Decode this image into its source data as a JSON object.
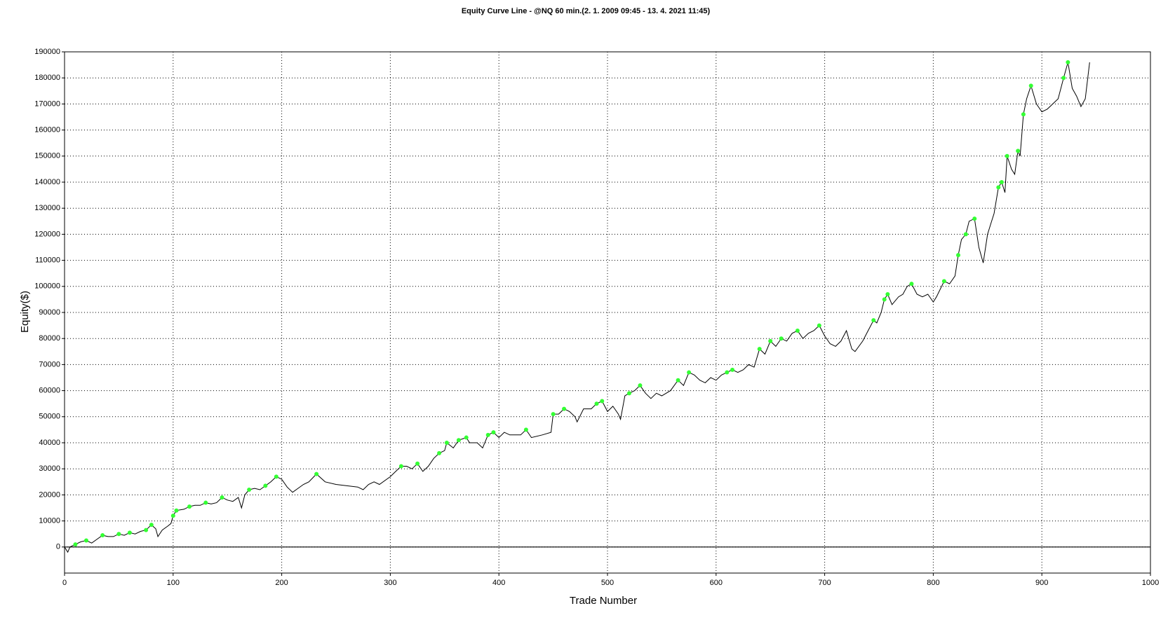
{
  "chart_data": {
    "type": "line",
    "title": "Equity Curve Line - @NQ 60 min.(2. 1. 2009 09:45 - 13. 4. 2021 11:45)",
    "xlabel": "Trade Number",
    "ylabel": "Equity($)",
    "xlim": [
      0,
      1000
    ],
    "xticks": [
      0,
      100,
      200,
      300,
      400,
      500,
      600,
      700,
      800,
      900,
      1000
    ],
    "ylim": [
      -10000,
      190000
    ],
    "yticks": [
      0,
      10000,
      20000,
      30000,
      40000,
      50000,
      60000,
      70000,
      80000,
      90000,
      100000,
      110000,
      120000,
      130000,
      140000,
      150000,
      160000,
      170000,
      180000,
      190000
    ],
    "grid": true,
    "color": "#000000",
    "x": [
      0,
      3,
      5,
      10,
      15,
      20,
      25,
      30,
      35,
      40,
      45,
      50,
      55,
      60,
      65,
      70,
      75,
      80,
      84,
      86,
      90,
      95,
      98,
      100,
      103,
      110,
      115,
      120,
      125,
      130,
      135,
      140,
      145,
      150,
      155,
      160,
      163,
      166,
      170,
      175,
      180,
      185,
      190,
      195,
      200,
      205,
      210,
      215,
      220,
      225,
      232,
      240,
      250,
      260,
      270,
      275,
      280,
      285,
      290,
      300,
      305,
      310,
      315,
      320,
      325,
      330,
      335,
      340,
      345,
      350,
      352,
      358,
      363,
      370,
      373,
      380,
      385,
      390,
      395,
      400,
      405,
      410,
      420,
      425,
      430,
      440,
      448,
      450,
      455,
      460,
      465,
      470,
      472,
      478,
      485,
      490,
      495,
      500,
      505,
      510,
      512,
      516,
      520,
      525,
      530,
      535,
      540,
      545,
      550,
      558,
      565,
      570,
      575,
      580,
      585,
      590,
      595,
      600,
      605,
      610,
      615,
      620,
      625,
      630,
      635,
      640,
      645,
      650,
      655,
      660,
      665,
      670,
      675,
      680,
      685,
      690,
      695,
      700,
      705,
      710,
      715,
      720,
      725,
      728,
      735,
      740,
      745,
      748,
      752,
      755,
      758,
      762,
      768,
      772,
      776,
      780,
      785,
      790,
      795,
      800,
      803,
      810,
      815,
      820,
      823,
      826,
      830,
      833,
      838,
      842,
      846,
      850,
      853,
      856,
      860,
      863,
      866,
      868,
      872,
      875,
      878,
      880,
      883,
      886,
      890,
      895,
      900,
      905,
      910,
      915,
      920,
      924,
      928,
      932,
      936,
      940,
      944
    ],
    "values": [
      0,
      -2000,
      0,
      1000,
      2000,
      2500,
      1500,
      3000,
      4500,
      4000,
      4000,
      5000,
      4500,
      5500,
      5000,
      6000,
      6500,
      8500,
      7000,
      4000,
      6500,
      8000,
      9000,
      12000,
      14000,
      14500,
      15500,
      16000,
      16000,
      17000,
      16500,
      17000,
      19000,
      18000,
      17500,
      19000,
      15000,
      20000,
      22000,
      22500,
      22000,
      23500,
      25000,
      27000,
      26000,
      23000,
      21000,
      22500,
      24000,
      25000,
      28000,
      25000,
      24000,
      23500,
      23000,
      22000,
      24000,
      25000,
      24000,
      27000,
      29000,
      31000,
      31000,
      30000,
      32000,
      29000,
      31000,
      34000,
      36000,
      37000,
      40000,
      38000,
      41000,
      42000,
      40000,
      40000,
      38000,
      43000,
      44000,
      42000,
      44000,
      43000,
      43000,
      45000,
      42000,
      43000,
      44000,
      51000,
      51000,
      53000,
      52000,
      50000,
      48000,
      53000,
      53000,
      55000,
      56000,
      52000,
      54000,
      51000,
      49000,
      58000,
      59000,
      60000,
      62000,
      59000,
      57000,
      59000,
      58000,
      60000,
      64000,
      62000,
      67000,
      66000,
      64000,
      63000,
      65000,
      64000,
      66000,
      67000,
      68000,
      67000,
      68000,
      70000,
      69000,
      76000,
      74000,
      79000,
      77000,
      80000,
      79000,
      82000,
      83000,
      80000,
      82000,
      83000,
      85000,
      81000,
      78000,
      77000,
      79000,
      83000,
      76000,
      75000,
      79000,
      83000,
      87000,
      86000,
      90000,
      95000,
      97000,
      93000,
      96000,
      97000,
      100000,
      101000,
      97000,
      96000,
      97000,
      94000,
      96000,
      102000,
      101000,
      104000,
      112000,
      118000,
      120000,
      125000,
      126000,
      115000,
      109000,
      120000,
      124000,
      128000,
      138000,
      140000,
      136000,
      150000,
      145000,
      143000,
      152000,
      150000,
      166000,
      172000,
      177000,
      170000,
      167000,
      168000,
      170000,
      172000,
      180000,
      186000,
      176000,
      173000,
      169000,
      172000,
      186000
    ],
    "highs": {
      "color": "#33ff33",
      "x": [
        10,
        20,
        35,
        50,
        60,
        75,
        80,
        100,
        103,
        115,
        130,
        145,
        170,
        185,
        195,
        232,
        310,
        325,
        345,
        352,
        363,
        370,
        390,
        395,
        425,
        450,
        460,
        490,
        495,
        520,
        530,
        565,
        575,
        610,
        615,
        640,
        650,
        660,
        675,
        695,
        745,
        755,
        758,
        780,
        810,
        823,
        830,
        838,
        860,
        863,
        868,
        878,
        883,
        890,
        920,
        924
      ],
      "values": [
        1000,
        2500,
        4500,
        5000,
        5500,
        6500,
        8500,
        12000,
        14000,
        15500,
        17000,
        19000,
        22000,
        23500,
        27000,
        28000,
        31000,
        32000,
        36000,
        40000,
        41000,
        42000,
        43000,
        44000,
        45000,
        51000,
        53000,
        55000,
        56000,
        59000,
        62000,
        64000,
        67000,
        67000,
        68000,
        76000,
        79000,
        80000,
        83000,
        85000,
        87000,
        95000,
        97000,
        101000,
        102000,
        112000,
        120000,
        126000,
        138000,
        140000,
        150000,
        152000,
        166000,
        177000,
        180000,
        186000
      ]
    }
  }
}
